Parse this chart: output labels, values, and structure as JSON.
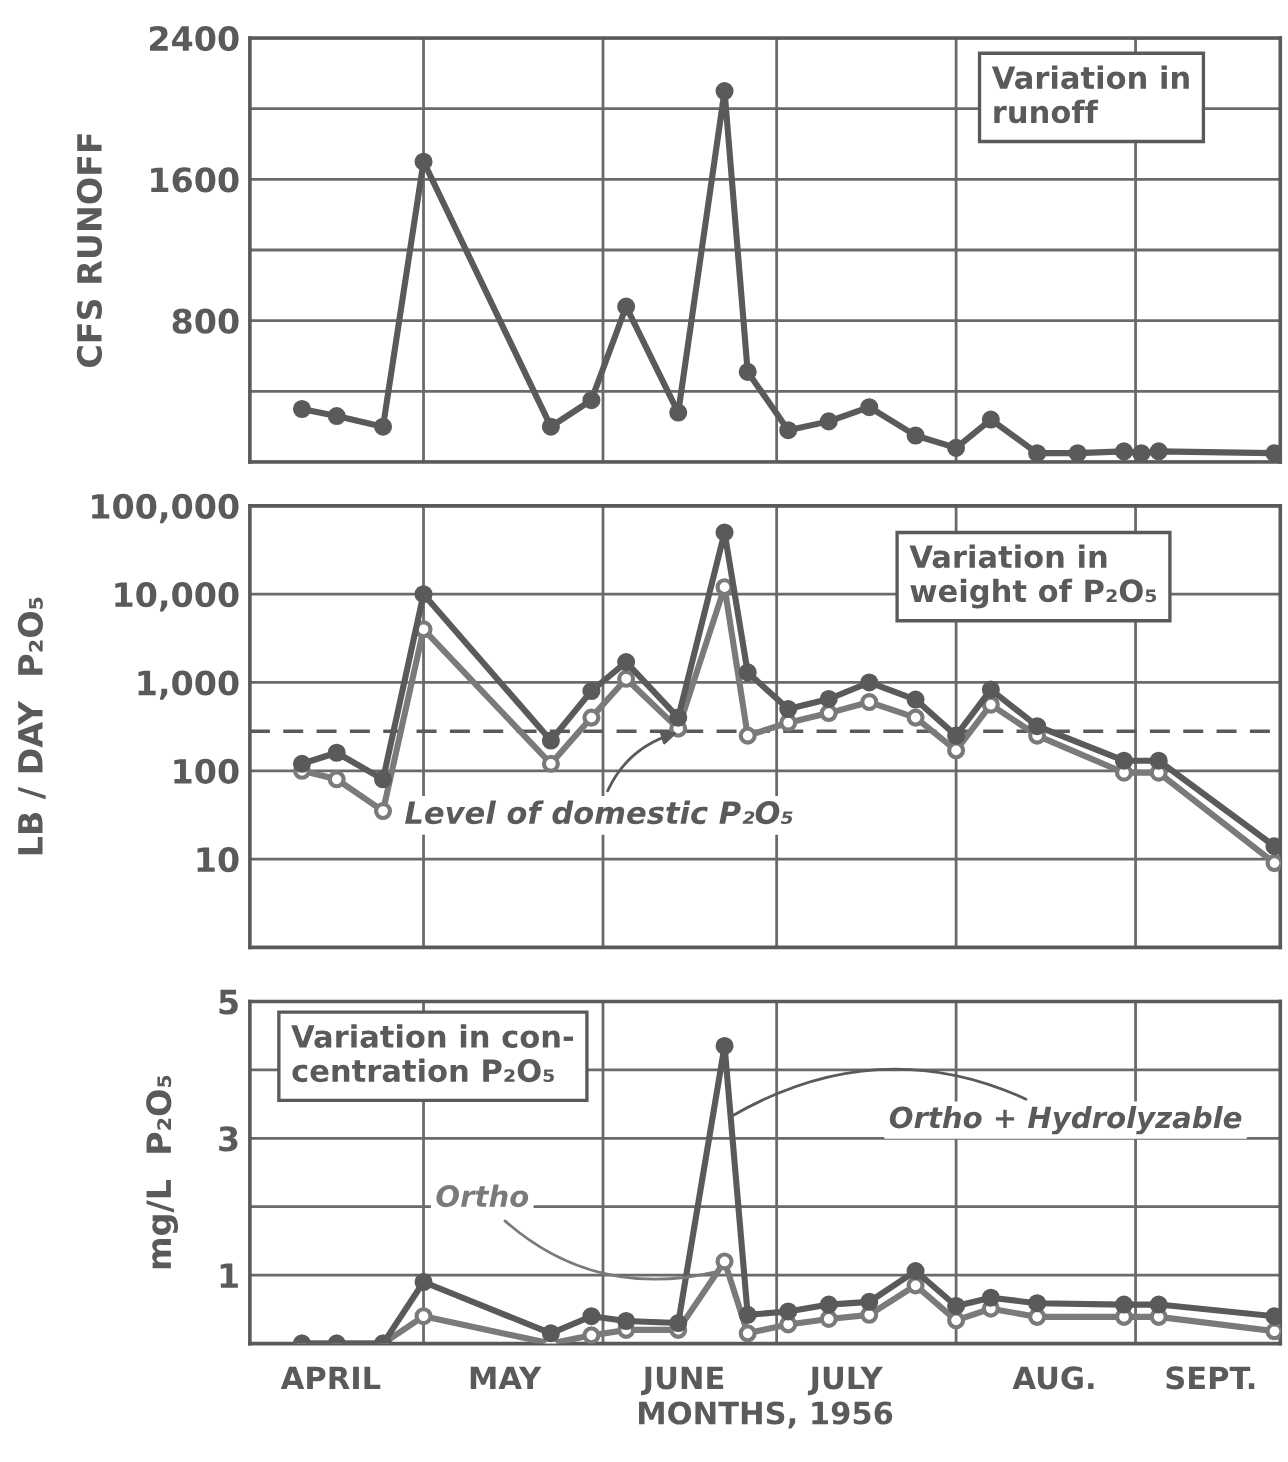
{
  "chart_data": [
    {
      "type": "line",
      "ylabel": "CFS RUNOFF",
      "annotations": [
        "Variation in\nrunoff"
      ],
      "grid": true,
      "marker": "circle",
      "tick_labels": "y",
      "xlim": [
        "1956-04-01",
        "1956-09-26"
      ],
      "xticks": [
        {
          "value": "1956-05-01",
          "label": null
        },
        {
          "value": "1956-06-01",
          "label": null
        },
        {
          "value": "1956-07-01",
          "label": null
        },
        {
          "value": "1956-08-01",
          "label": null
        },
        {
          "value": "1956-09-01",
          "label": null
        }
      ],
      "ylim": [
        0,
        2400
      ],
      "yticks": [
        {
          "value": 0,
          "label": null
        },
        {
          "value": 400,
          "label": null
        },
        800,
        {
          "value": 1200,
          "label": null
        },
        1600,
        {
          "value": 2000,
          "label": null
        },
        2400
      ],
      "x": [
        "1956-04-10",
        "1956-04-16",
        "1956-04-24",
        "1956-05-01",
        "1956-05-23",
        "1956-05-30",
        "1956-06-05",
        "1956-06-14",
        "1956-06-22",
        "1956-06-26",
        "1956-07-03",
        "1956-07-10",
        "1956-07-17",
        "1956-07-25",
        "1956-08-01",
        "1956-08-07",
        "1956-08-15",
        "1956-08-22",
        "1956-08-30",
        "1956-09-02",
        "1956-09-05",
        "1956-09-25"
      ],
      "series": [
        {
          "color": "#5a5a5a",
          "values": [
            300,
            260,
            200,
            1700,
            200,
            350,
            880,
            280,
            2100,
            510,
            180,
            230,
            310,
            150,
            80,
            240,
            50,
            50,
            60,
            50,
            60,
            50
          ]
        }
      ]
    },
    {
      "type": "line",
      "ylabel": "LB / DAY  P₂O₅",
      "annotations": [
        "Variation in\nweight of P₂O₅"
      ],
      "grid": true,
      "marker": "circle",
      "log": true,
      "tick_labels": "y",
      "xlim": [
        "1956-04-01",
        "1956-09-26"
      ],
      "xticks": [
        {
          "value": "1956-05-01",
          "label": null
        },
        {
          "value": "1956-06-01",
          "label": null
        },
        {
          "value": "1956-07-01",
          "label": null
        },
        {
          "value": "1956-08-01",
          "label": null
        },
        {
          "value": "1956-09-01",
          "label": null
        }
      ],
      "ylim": [
        1,
        100000
      ],
      "yticks": [
        10,
        100,
        {
          "value": 1000,
          "label": "1,000"
        },
        {
          "value": 10000,
          "label": "10,000"
        },
        {
          "value": 100000,
          "label": "100,000"
        }
      ],
      "ref_lines": [
        {
          "axis": "y",
          "value": 280,
          "label": "Level of domestic P₂O₅",
          "line_style": "dashed",
          "color": "#5a5a5a"
        }
      ],
      "x": [
        "1956-04-10",
        "1956-04-16",
        "1956-04-24",
        "1956-05-01",
        "1956-05-23",
        "1956-05-30",
        "1956-06-05",
        "1956-06-14",
        "1956-06-22",
        "1956-06-26",
        "1956-07-03",
        "1956-07-10",
        "1956-07-17",
        "1956-07-25",
        "1956-08-01",
        "1956-08-07",
        "1956-08-15",
        "1956-08-30",
        "1956-09-05",
        "1956-09-25"
      ],
      "series": [
        {
          "color": "#5a5a5a",
          "values": [
            120,
            160,
            80,
            10000,
            220,
            800,
            1700,
            400,
            50000,
            1300,
            500,
            650,
            1000,
            640,
            250,
            830,
            320,
            130,
            130,
            14
          ]
        },
        {
          "color": "#7a7a7a",
          "values": [
            100,
            80,
            35,
            4000,
            120,
            400,
            1100,
            300,
            12000,
            250,
            350,
            450,
            600,
            400,
            170,
            560,
            250,
            95,
            95,
            9
          ]
        }
      ]
    },
    {
      "type": "line",
      "ylabel": "mg/L  P₂O₅",
      "xlabel": "MONTHS, 1956",
      "annotations": [
        "Variation in con-\ncentration P₂O₅"
      ],
      "grid": true,
      "marker": "circle",
      "xlim": [
        "1956-04-01",
        "1956-09-26"
      ],
      "xticks": [
        {
          "value": "1956-04-15",
          "label": "APRIL"
        },
        {
          "value": "1956-05-01",
          "label": null
        },
        {
          "value": "1956-05-15",
          "label": "MAY"
        },
        {
          "value": "1956-06-01",
          "label": null
        },
        {
          "value": "1956-06-15",
          "label": "JUNE"
        },
        {
          "value": "1956-07-01",
          "label": null
        },
        {
          "value": "1956-07-13",
          "label": "JULY"
        },
        {
          "value": "1956-08-01",
          "label": null
        },
        {
          "value": "1956-08-18",
          "label": "AUG."
        },
        {
          "value": "1956-09-01",
          "label": null
        },
        {
          "value": "1956-09-14",
          "label": "SEPT."
        }
      ],
      "ylim": [
        0,
        5
      ],
      "yticks": [
        {
          "value": 0,
          "label": null
        },
        1,
        {
          "value": 2,
          "label": null
        },
        3,
        {
          "value": 4,
          "label": null
        },
        5
      ],
      "x": [
        "1956-04-10",
        "1956-04-16",
        "1956-04-24",
        "1956-05-01",
        "1956-05-23",
        "1956-05-30",
        "1956-06-05",
        "1956-06-14",
        "1956-06-22",
        "1956-06-26",
        "1956-07-03",
        "1956-07-10",
        "1956-07-17",
        "1956-07-25",
        "1956-08-01",
        "1956-08-07",
        "1956-08-15",
        "1956-08-30",
        "1956-09-05",
        "1956-09-25"
      ],
      "series": [
        {
          "name": "Ortho + Hydrolyzable",
          "color": "#5a5a5a",
          "values": [
            0,
            0,
            0,
            0.9,
            0.15,
            0.4,
            0.33,
            0.3,
            4.35,
            0.42,
            0.47,
            0.57,
            0.61,
            1.06,
            0.55,
            0.67,
            0.59,
            0.57,
            0.57,
            0.4
          ]
        },
        {
          "name": "Ortho",
          "color": "#7a7a7a",
          "values": [
            0,
            0,
            0,
            0.4,
            0,
            0.12,
            0.2,
            0.2,
            1.2,
            0.15,
            0.28,
            0.36,
            0.42,
            0.85,
            0.34,
            0.51,
            0.39,
            0.39,
            0.39,
            0.18
          ]
        }
      ]
    }
  ]
}
